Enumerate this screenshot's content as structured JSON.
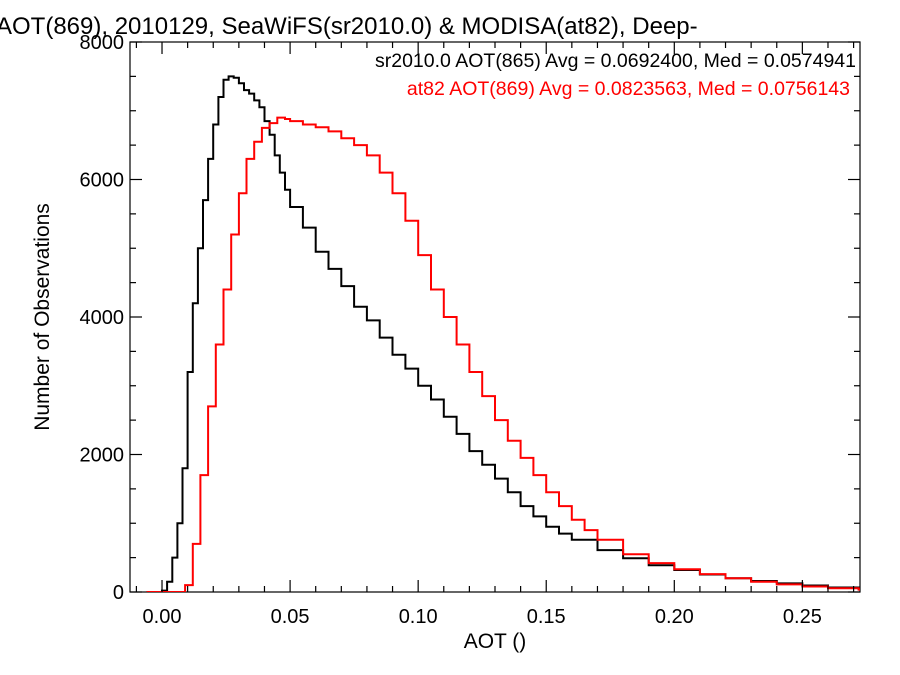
{
  "chart_data": {
    "type": "line",
    "title": "AOT(869), 2010129, SeaWiFS(sr2010.0) & MODISA(at82), Deep-",
    "xlabel": "AOT ()",
    "ylabel": "Number of Observations",
    "xlim": [
      -0.0125,
      0.2725
    ],
    "ylim": [
      0,
      8000
    ],
    "x_ticks": [
      "0.00",
      "0.05",
      "0.10",
      "0.15",
      "0.20",
      "0.25"
    ],
    "y_ticks": [
      "0",
      "2000",
      "4000",
      "6000",
      "8000"
    ],
    "grid": false,
    "legend_position": "top-right",
    "legend": [
      "sr2010.0 AOT(865) Avg = 0.0692400, Med = 0.0574941",
      "at82 AOT(869) Avg = 0.0823563, Med = 0.0756143"
    ],
    "series": [
      {
        "color": "#000000",
        "x": [
          -0.006,
          0.0,
          0.002,
          0.004,
          0.006,
          0.008,
          0.01,
          0.012,
          0.014,
          0.016,
          0.018,
          0.02,
          0.022,
          0.024,
          0.026,
          0.028,
          0.03,
          0.032,
          0.034,
          0.036,
          0.038,
          0.04,
          0.042,
          0.044,
          0.046,
          0.048,
          0.05,
          0.055,
          0.06,
          0.065,
          0.07,
          0.075,
          0.08,
          0.085,
          0.09,
          0.095,
          0.1,
          0.105,
          0.11,
          0.115,
          0.12,
          0.125,
          0.13,
          0.135,
          0.14,
          0.145,
          0.15,
          0.155,
          0.16,
          0.17,
          0.18,
          0.19,
          0.2,
          0.21,
          0.22,
          0.23,
          0.24,
          0.25,
          0.26,
          0.272
        ],
        "y": [
          0,
          20,
          150,
          500,
          1000,
          1800,
          3200,
          4200,
          5000,
          5700,
          6300,
          6800,
          7200,
          7450,
          7500,
          7480,
          7400,
          7300,
          7250,
          7150,
          7050,
          6850,
          6650,
          6350,
          6100,
          5850,
          5600,
          5300,
          4950,
          4700,
          4450,
          4150,
          3950,
          3700,
          3450,
          3250,
          3000,
          2800,
          2550,
          2300,
          2050,
          1850,
          1650,
          1450,
          1250,
          1100,
          950,
          850,
          760,
          610,
          490,
          390,
          320,
          255,
          200,
          160,
          125,
          95,
          65,
          40
        ]
      },
      {
        "color": "#ff0000",
        "x": [
          -0.006,
          0.0,
          0.005,
          0.009,
          0.012,
          0.015,
          0.018,
          0.021,
          0.024,
          0.027,
          0.03,
          0.033,
          0.036,
          0.039,
          0.042,
          0.045,
          0.048,
          0.05,
          0.055,
          0.06,
          0.065,
          0.07,
          0.075,
          0.08,
          0.085,
          0.09,
          0.095,
          0.1,
          0.105,
          0.11,
          0.115,
          0.12,
          0.125,
          0.13,
          0.135,
          0.14,
          0.145,
          0.15,
          0.155,
          0.16,
          0.165,
          0.17,
          0.18,
          0.19,
          0.2,
          0.21,
          0.22,
          0.23,
          0.24,
          0.25,
          0.26,
          0.272
        ],
        "y": [
          0,
          0,
          0,
          100,
          700,
          1700,
          2700,
          3600,
          4400,
          5200,
          5800,
          6300,
          6550,
          6750,
          6820,
          6900,
          6880,
          6850,
          6800,
          6760,
          6700,
          6600,
          6500,
          6350,
          6100,
          5800,
          5400,
          4900,
          4400,
          4000,
          3600,
          3200,
          2850,
          2500,
          2200,
          1950,
          1700,
          1450,
          1250,
          1050,
          900,
          760,
          550,
          420,
          330,
          260,
          200,
          150,
          110,
          80,
          55,
          35
        ]
      }
    ]
  }
}
